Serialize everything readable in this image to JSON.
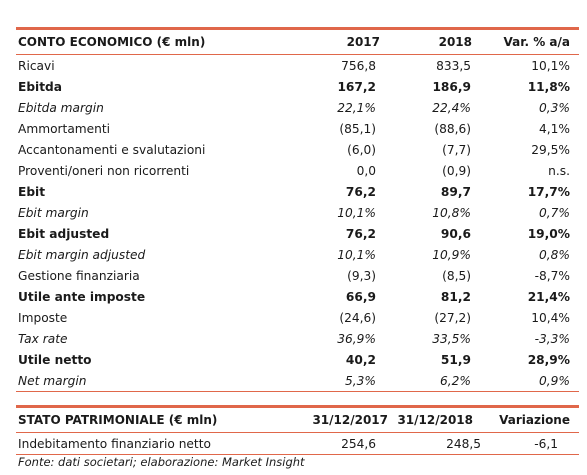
{
  "conto_economico": {
    "title": "CONTO ECONOMICO (€ mln)",
    "col_2017": "2017",
    "col_2018": "2018",
    "col_var": "Var. % a/a",
    "rows": [
      {
        "label": "Ricavi",
        "v2017": "756,8",
        "v2018": "833,5",
        "var": "10,1%"
      },
      {
        "label": "Ebitda",
        "v2017": "167,2",
        "v2018": "186,9",
        "var": "11,8%"
      },
      {
        "label": "Ebitda margin",
        "v2017": "22,1%",
        "v2018": "22,4%",
        "var": "0,3%"
      },
      {
        "label": "Ammortamenti",
        "v2017": "(85,1)",
        "v2018": "(88,6)",
        "var": "4,1%"
      },
      {
        "label": "Accantonamenti e svalutazioni",
        "v2017": "(6,0)",
        "v2018": "(7,7)",
        "var": "29,5%"
      },
      {
        "label": "Proventi/oneri non ricorrenti",
        "v2017": "0,0",
        "v2018": "(0,9)",
        "var": "n.s."
      },
      {
        "label": "Ebit",
        "v2017": "76,2",
        "v2018": "89,7",
        "var": "17,7%"
      },
      {
        "label": "Ebit margin",
        "v2017": "10,1%",
        "v2018": "10,8%",
        "var": "0,7%"
      },
      {
        "label": "Ebit adjusted",
        "v2017": "76,2",
        "v2018": "90,6",
        "var": "19,0%"
      },
      {
        "label": "Ebit margin adjusted",
        "v2017": "10,1%",
        "v2018": "10,9%",
        "var": "0,8%"
      },
      {
        "label": "Gestione finanziaria",
        "v2017": "(9,3)",
        "v2018": "(8,5)",
        "var": "-8,7%"
      },
      {
        "label": "Utile ante imposte",
        "v2017": "66,9",
        "v2018": "81,2",
        "var": "21,4%"
      },
      {
        "label": "Imposte",
        "v2017": "(24,6)",
        "v2018": "(27,2)",
        "var": "10,4%"
      },
      {
        "label": "Tax rate",
        "v2017": "36,9%",
        "v2018": "33,5%",
        "var": "-3,3%"
      },
      {
        "label": "Utile netto",
        "v2017": "40,2",
        "v2018": "51,9",
        "var": "28,9%"
      },
      {
        "label": "Net margin",
        "v2017": "5,3%",
        "v2018": "6,2%",
        "var": "0,9%"
      }
    ]
  },
  "stato_patrimoniale": {
    "title": "STATO PATRIMONIALE (€ mln)",
    "col_2017": "31/12/2017",
    "col_2018": "31/12/2018",
    "col_var": "Variazione",
    "rows": [
      {
        "label": "Indebitamento finanziario netto",
        "v2017": "254,6",
        "v2018": "248,5",
        "var": "-6,1"
      }
    ]
  },
  "source": "Fonte: dati societari; elaborazione: Market Insight",
  "colors": {
    "accent": "#e0674a",
    "text": "#1a1a1a"
  }
}
